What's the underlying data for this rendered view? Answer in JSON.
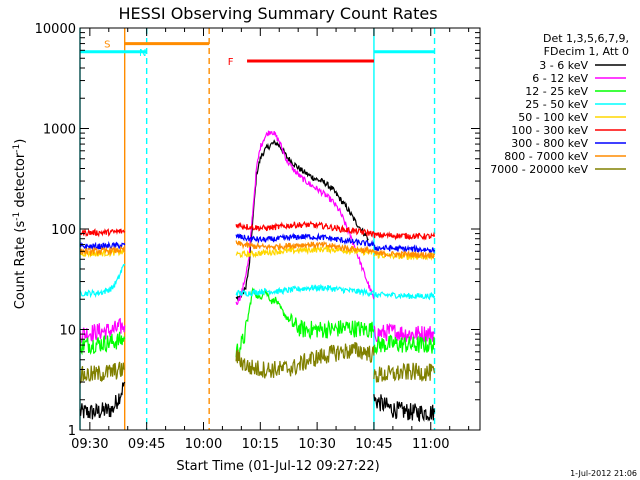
{
  "chart_data": {
    "type": "line",
    "title": "HESSI Observing Summary Count Rates",
    "xlabel": "Start Time (01-Jul-12 09:27:22)",
    "ylabel_main": "Count Rate (s",
    "ylabel_sup1": "-1",
    "ylabel_mid": " detector",
    "ylabel_sup2": "-1",
    "ylabel_end": ")",
    "y_scale": "log",
    "ylim": [
      1,
      10000
    ],
    "xlim_minutes": [
      567.4,
      673.0
    ],
    "x_ticks": [
      {
        "m": 570,
        "label": "09:30"
      },
      {
        "m": 585,
        "label": "09:45"
      },
      {
        "m": 600,
        "label": "10:00"
      },
      {
        "m": 615,
        "label": "10:15"
      },
      {
        "m": 630,
        "label": "10:30"
      },
      {
        "m": 645,
        "label": "10:45"
      },
      {
        "m": 660,
        "label": "11:00"
      }
    ],
    "y_ticks": [
      {
        "v": 1,
        "label": "1"
      },
      {
        "v": 10,
        "label": "10"
      },
      {
        "v": 100,
        "label": "100"
      },
      {
        "v": 1000,
        "label": "1000"
      },
      {
        "v": 10000,
        "label": "10000"
      }
    ],
    "legend_header": [
      "Det 1,3,5,6,7,9,",
      "FDecim 1, Att 0"
    ],
    "legend_placement": "right",
    "series": [
      {
        "name": "3 - 6 keV",
        "color": "#000000",
        "segments": [
          [
            [
              567.4,
              1.5
            ],
            [
              571,
              1.5
            ],
            [
              576,
              1.6
            ],
            [
              578.5,
              2.5
            ],
            [
              579.2,
              3
            ]
          ],
          [
            [
              608.6,
              20
            ],
            [
              610,
              22
            ],
            [
              611,
              25
            ],
            [
              612,
              40
            ],
            [
              613,
              120
            ],
            [
              614,
              350
            ],
            [
              615,
              500
            ],
            [
              616,
              600
            ],
            [
              617,
              650
            ],
            [
              618,
              700
            ],
            [
              619,
              720
            ],
            [
              620,
              680
            ],
            [
              621,
              600
            ],
            [
              622,
              520
            ],
            [
              624,
              440
            ],
            [
              626,
              380
            ],
            [
              628,
              340
            ],
            [
              630,
              310
            ],
            [
              632,
              290
            ],
            [
              634,
              250
            ],
            [
              636,
              200
            ],
            [
              638,
              160
            ],
            [
              640,
              120
            ],
            [
              642,
              95
            ],
            [
              643.5,
              80
            ]
          ],
          [
            [
              645,
              2
            ],
            [
              650,
              1.6
            ],
            [
              655,
              1.5
            ],
            [
              661,
              1.5
            ]
          ]
        ]
      },
      {
        "name": "6 - 12 keV",
        "color": "#ff00ff",
        "segments": [
          [
            [
              567.4,
              9
            ],
            [
              572,
              9.5
            ],
            [
              576,
              9.8
            ],
            [
              579.2,
              11
            ]
          ],
          [
            [
              608.6,
              18
            ],
            [
              610,
              22
            ],
            [
              612,
              50
            ],
            [
              613,
              150
            ],
            [
              614,
              400
            ],
            [
              615,
              650
            ],
            [
              616,
              800
            ],
            [
              617,
              900
            ],
            [
              618,
              950
            ],
            [
              619,
              850
            ],
            [
              620,
              750
            ],
            [
              621,
              600
            ],
            [
              622,
              480
            ],
            [
              624,
              380
            ],
            [
              626,
              320
            ],
            [
              628,
              280
            ],
            [
              630,
              250
            ],
            [
              632,
              220
            ],
            [
              634,
              190
            ],
            [
              636,
              150
            ],
            [
              638,
              100
            ],
            [
              640,
              65
            ],
            [
              642,
              40
            ],
            [
              644,
              25
            ],
            [
              645,
              20
            ]
          ],
          [
            [
              645,
              9
            ],
            [
              650,
              9.5
            ],
            [
              655,
              9
            ],
            [
              661,
              9.2
            ]
          ]
        ]
      },
      {
        "name": "12 - 25 keV",
        "color": "#00ff00",
        "segments": [
          [
            [
              567.4,
              7
            ],
            [
              572,
              7.2
            ],
            [
              576,
              7.5
            ],
            [
              579.2,
              8
            ]
          ],
          [
            [
              608.6,
              6
            ],
            [
              610,
              7
            ],
            [
              611,
              9
            ],
            [
              612,
              15
            ],
            [
              613,
              25
            ],
            [
              614,
              22
            ],
            [
              615,
              20
            ],
            [
              616,
              25
            ],
            [
              617,
              22
            ],
            [
              618,
              19
            ],
            [
              619,
              20
            ],
            [
              620,
              17
            ],
            [
              622,
              13
            ],
            [
              624,
              11
            ],
            [
              626,
              10
            ],
            [
              630,
              10
            ],
            [
              634,
              10
            ],
            [
              638,
              10.5
            ],
            [
              642,
              10
            ],
            [
              645,
              10
            ]
          ],
          [
            [
              645,
              7
            ],
            [
              650,
              7.2
            ],
            [
              655,
              7
            ],
            [
              661,
              7
            ]
          ]
        ]
      },
      {
        "name": "25 - 50 keV",
        "color": "#00ffff",
        "segments": [
          [
            [
              567.4,
              23
            ],
            [
              572,
              23
            ],
            [
              574,
              24
            ],
            [
              576,
              26
            ],
            [
              577.5,
              32
            ],
            [
              578.5,
              40
            ],
            [
              579.2,
              45
            ]
          ],
          [
            [
              608.6,
              23
            ],
            [
              612,
              23
            ],
            [
              616,
              24
            ],
            [
              620,
              24
            ],
            [
              624,
              25
            ],
            [
              628,
              26
            ],
            [
              632,
              26
            ],
            [
              636,
              25
            ],
            [
              640,
              24
            ],
            [
              645,
              23
            ]
          ],
          [
            [
              645,
              22
            ],
            [
              650,
              22
            ],
            [
              655,
              21.5
            ],
            [
              661,
              21.5
            ]
          ]
        ]
      },
      {
        "name": "50 - 100 keV",
        "color": "#ffd700",
        "segments": [
          [
            [
              567.4,
              57
            ],
            [
              572,
              57
            ],
            [
              576,
              58
            ],
            [
              579.2,
              59
            ]
          ],
          [
            [
              608.6,
              56
            ],
            [
              612,
              56
            ],
            [
              616,
              58
            ],
            [
              620,
              60
            ],
            [
              624,
              61
            ],
            [
              628,
              62
            ],
            [
              632,
              63
            ],
            [
              636,
              62
            ],
            [
              640,
              60
            ],
            [
              645,
              58
            ]
          ],
          [
            [
              645,
              55
            ],
            [
              650,
              54
            ],
            [
              655,
              53
            ],
            [
              661,
              53
            ]
          ]
        ]
      },
      {
        "name": "100 - 300 keV",
        "color": "#ff0000",
        "segments": [
          [
            [
              567.4,
              92
            ],
            [
              572,
              92
            ],
            [
              576,
              93
            ],
            [
              579.2,
              95
            ]
          ],
          [
            [
              608.6,
              110
            ],
            [
              612,
              105
            ],
            [
              616,
              102
            ],
            [
              620,
              105
            ],
            [
              624,
              110
            ],
            [
              628,
              110
            ],
            [
              632,
              107
            ],
            [
              636,
              100
            ],
            [
              640,
              95
            ],
            [
              645,
              90
            ]
          ],
          [
            [
              645,
              87
            ],
            [
              650,
              86
            ],
            [
              655,
              85
            ],
            [
              661,
              84
            ]
          ]
        ]
      },
      {
        "name": "300 - 800 keV",
        "color": "#0000ff",
        "segments": [
          [
            [
              567.4,
              67
            ],
            [
              572,
              67
            ],
            [
              576,
              68
            ],
            [
              579.2,
              69
            ]
          ],
          [
            [
              608.6,
              85
            ],
            [
              612,
              80
            ],
            [
              616,
              78
            ],
            [
              620,
              80
            ],
            [
              624,
              83
            ],
            [
              628,
              84
            ],
            [
              632,
              82
            ],
            [
              636,
              78
            ],
            [
              640,
              74
            ],
            [
              645,
              70
            ]
          ],
          [
            [
              645,
              65
            ],
            [
              650,
              64
            ],
            [
              655,
              63
            ],
            [
              661,
              62
            ]
          ]
        ]
      },
      {
        "name": "800 - 7000 keV",
        "color": "#ff8c00",
        "segments": [
          [
            [
              567.4,
              60
            ],
            [
              572,
              60
            ],
            [
              576,
              61
            ],
            [
              579.2,
              62
            ]
          ],
          [
            [
              608.6,
              72
            ],
            [
              612,
              68
            ],
            [
              616,
              66
            ],
            [
              620,
              67
            ],
            [
              624,
              69
            ],
            [
              628,
              70
            ],
            [
              632,
              69
            ],
            [
              636,
              66
            ],
            [
              640,
              63
            ],
            [
              645,
              60
            ]
          ],
          [
            [
              645,
              57
            ],
            [
              650,
              56
            ],
            [
              655,
              56
            ],
            [
              661,
              55
            ]
          ]
        ]
      },
      {
        "name": "7000 - 20000 keV",
        "color": "#808000",
        "segments": [
          [
            [
              567.4,
              3.5
            ],
            [
              572,
              3.6
            ],
            [
              576,
              3.8
            ],
            [
              579.2,
              4
            ]
          ],
          [
            [
              608.6,
              5.5
            ],
            [
              610,
              4.8
            ],
            [
              612,
              4.2
            ],
            [
              616,
              4
            ],
            [
              620,
              4
            ],
            [
              624,
              4.2
            ],
            [
              628,
              5
            ],
            [
              632,
              5.5
            ],
            [
              636,
              6
            ],
            [
              640,
              6.2
            ],
            [
              643,
              6
            ],
            [
              645,
              5.5
            ]
          ],
          [
            [
              645,
              3.5
            ],
            [
              650,
              3.6
            ],
            [
              655,
              3.8
            ],
            [
              661,
              3.7
            ]
          ]
        ]
      }
    ],
    "attenuator_segments": [
      {
        "m0": 567.4,
        "m1": 585.0,
        "v": 5800,
        "color": "#00ffff"
      },
      {
        "m0": 645.0,
        "m1": 661.0,
        "v": 5800,
        "color": "#00ffff"
      },
      {
        "m0": 579.2,
        "m1": 601.5,
        "v": 7000,
        "color": "#ff8c00"
      },
      {
        "m0": 611.5,
        "m1": 645.0,
        "v": 4700,
        "color": "#ff0000"
      }
    ],
    "annotations": [
      {
        "text": "S",
        "m": 576.5,
        "v": 7000,
        "color": "#ff8c00"
      },
      {
        "text": "N",
        "m": 586.0,
        "v": 5800,
        "color": "#00ffff"
      },
      {
        "text": "F",
        "m": 609.0,
        "v": 4700,
        "color": "#ff0000"
      }
    ],
    "vlines": [
      {
        "m": 567.4,
        "style": "solid",
        "color": "#00ffff"
      },
      {
        "m": 585.0,
        "style": "dashed",
        "color": "#00ffff"
      },
      {
        "m": 645.0,
        "style": "solid",
        "color": "#00ffff"
      },
      {
        "m": 661.0,
        "style": "dashed",
        "color": "#00ffff"
      },
      {
        "m": 579.2,
        "style": "solid",
        "color": "#ff8c00"
      },
      {
        "m": 601.5,
        "style": "dashed",
        "color": "#ff8c00"
      }
    ],
    "corner_date": "1-Jul-2012 21:06"
  }
}
